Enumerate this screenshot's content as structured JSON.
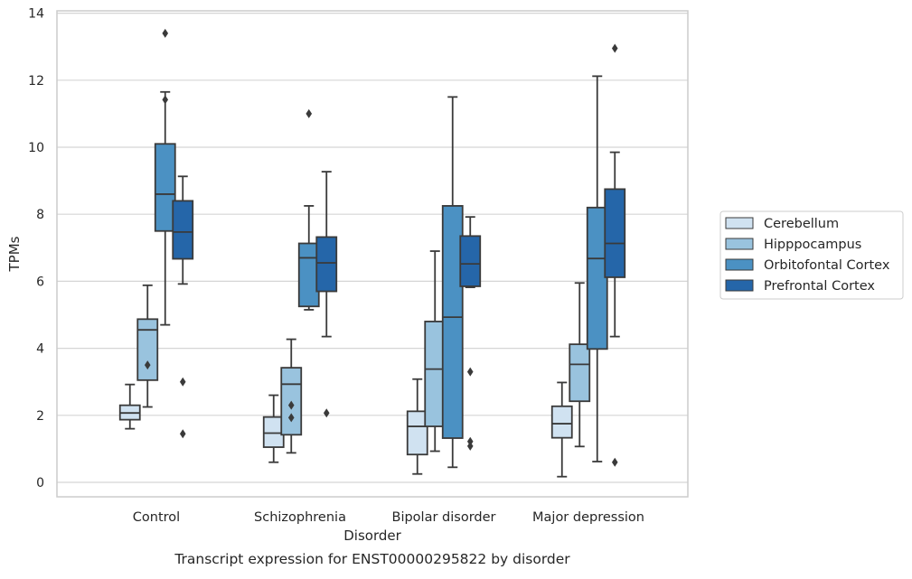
{
  "chart_data": {
    "type": "box",
    "title": "",
    "caption": "Transcript expression for ENST00000295822 by disorder",
    "xlabel": "Disorder",
    "ylabel": "TPMs",
    "ylim": [
      -0.45,
      14.1
    ],
    "yticks": [
      0,
      2,
      4,
      6,
      8,
      10,
      12,
      14
    ],
    "grid": "horizontal",
    "legend_position": "right",
    "categories": [
      "Control",
      "Schizophrenia",
      "Bipolar disorder",
      "Major depression"
    ],
    "series": [
      {
        "name": "Cerebellum",
        "color": "#d0e2f1",
        "boxes": [
          {
            "whisker_low": 1.6,
            "q1": 1.87,
            "median": 2.07,
            "q3": 2.3,
            "whisker_high": 2.92,
            "outliers": []
          },
          {
            "whisker_low": 0.6,
            "q1": 1.05,
            "median": 1.47,
            "q3": 1.95,
            "whisker_high": 2.6,
            "outliers": []
          },
          {
            "whisker_low": 0.25,
            "q1": 0.83,
            "median": 1.67,
            "q3": 2.12,
            "whisker_high": 3.08,
            "outliers": []
          },
          {
            "whisker_low": 0.17,
            "q1": 1.33,
            "median": 1.75,
            "q3": 2.27,
            "whisker_high": 2.98,
            "outliers": []
          }
        ]
      },
      {
        "name": "Hipppocampus",
        "color": "#99c3de",
        "boxes": [
          {
            "whisker_low": 2.25,
            "q1": 3.05,
            "median": 4.55,
            "q3": 4.87,
            "whisker_high": 5.88,
            "outliers": [
              3.5
            ]
          },
          {
            "whisker_low": 0.88,
            "q1": 1.42,
            "median": 2.93,
            "q3": 3.42,
            "whisker_high": 4.27,
            "outliers": [
              2.3,
              1.93
            ]
          },
          {
            "whisker_low": 0.93,
            "q1": 1.67,
            "median": 3.38,
            "q3": 4.8,
            "whisker_high": 6.9,
            "outliers": []
          },
          {
            "whisker_low": 1.07,
            "q1": 2.42,
            "median": 3.52,
            "q3": 4.12,
            "whisker_high": 5.95,
            "outliers": []
          }
        ]
      },
      {
        "name": "Orbitofontal Cortex",
        "color": "#4b91c3",
        "boxes": [
          {
            "whisker_low": 4.7,
            "q1": 7.5,
            "median": 8.6,
            "q3": 10.1,
            "whisker_high": 11.65,
            "outliers": [
              13.4,
              11.42
            ]
          },
          {
            "whisker_low": 5.15,
            "q1": 5.25,
            "median": 6.7,
            "q3": 7.13,
            "whisker_high": 8.25,
            "outliers": [
              11.0
            ]
          },
          {
            "whisker_low": 0.45,
            "q1": 1.32,
            "median": 4.93,
            "q3": 8.25,
            "whisker_high": 11.5,
            "outliers": []
          },
          {
            "whisker_low": 0.62,
            "q1": 3.98,
            "median": 6.68,
            "q3": 8.2,
            "whisker_high": 12.12,
            "outliers": []
          }
        ]
      },
      {
        "name": "Prefrontal Cortex",
        "color": "#2566a9",
        "boxes": [
          {
            "whisker_low": 5.92,
            "q1": 6.67,
            "median": 7.47,
            "q3": 8.4,
            "whisker_high": 9.13,
            "outliers": [
              3.0,
              1.45
            ]
          },
          {
            "whisker_low": 4.35,
            "q1": 5.7,
            "median": 6.55,
            "q3": 7.32,
            "whisker_high": 9.27,
            "outliers": [
              2.07
            ]
          },
          {
            "whisker_low": 5.82,
            "q1": 5.85,
            "median": 6.52,
            "q3": 7.35,
            "whisker_high": 7.92,
            "outliers": [
              3.3,
              1.22,
              1.08
            ]
          },
          {
            "whisker_low": 4.35,
            "q1": 6.12,
            "median": 7.13,
            "q3": 8.75,
            "whisker_high": 9.85,
            "outliers": [
              12.95,
              0.6
            ]
          }
        ]
      }
    ]
  }
}
